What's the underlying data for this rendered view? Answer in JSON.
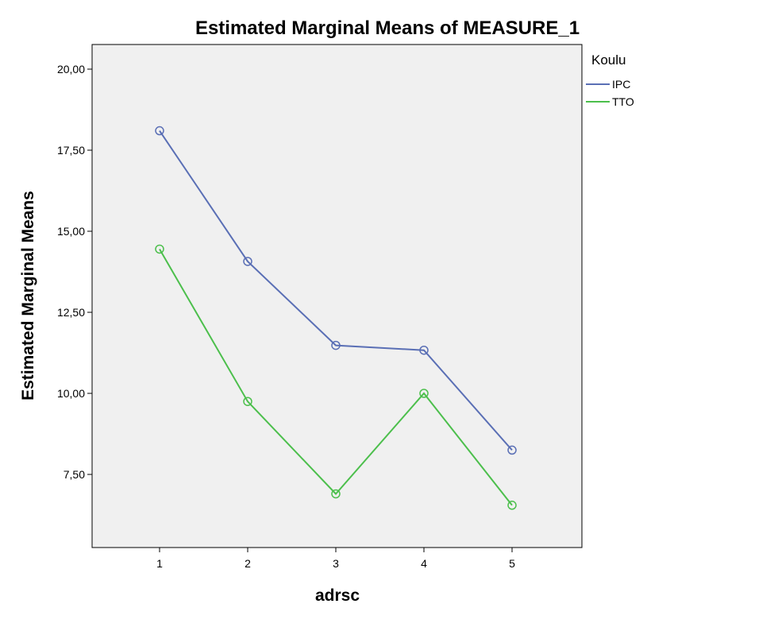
{
  "chart_data": {
    "type": "line",
    "title": "Estimated Marginal Means of MEASURE_1",
    "xlabel": "adrsc",
    "ylabel": "Estimated Marginal Means",
    "categories": [
      "1",
      "2",
      "3",
      "4",
      "5"
    ],
    "yticks": [
      7.5,
      10,
      12.5,
      15,
      17.5,
      20
    ],
    "ytick_labels": [
      "7,50",
      "10,00",
      "12,50",
      "15,00",
      "17,50",
      "20,00"
    ],
    "ylim": [
      5.75,
      20.75
    ],
    "grid": false,
    "legend": {
      "title": "Koulu",
      "position": "top-right outside"
    },
    "background": "#f0f0f0",
    "series": [
      {
        "name": "IPC",
        "color": "#5a6fb5",
        "values": [
          18.1,
          14.07,
          11.48,
          11.33,
          8.25
        ]
      },
      {
        "name": "TTO",
        "color": "#4cbf4c",
        "values": [
          14.45,
          9.75,
          6.9,
          10.0,
          6.55
        ]
      }
    ]
  }
}
